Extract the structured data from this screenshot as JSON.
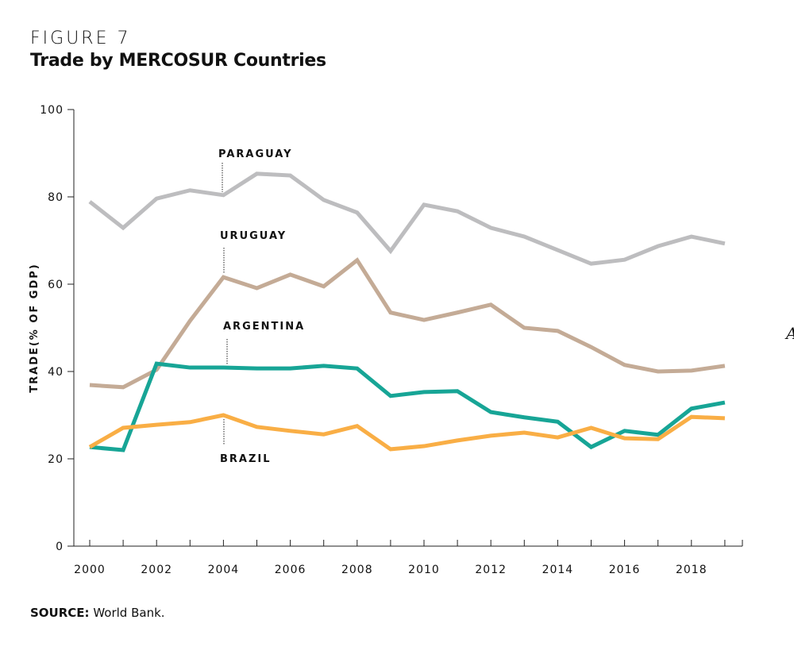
{
  "figure_label": "FIGURE 7",
  "title": "Trade by MERCOSUR Countries",
  "source_label": "SOURCE:",
  "source_text": "World Bank.",
  "stray_text": "A",
  "chart_data": {
    "type": "line",
    "title": "Trade by MERCOSUR Countries",
    "xlabel": "",
    "ylabel": "TRADE(% OF GDP)",
    "ylim": [
      0,
      100
    ],
    "xlim": [
      2000,
      2019
    ],
    "yticks": [
      "0",
      "20",
      "40",
      "60",
      "80",
      "100"
    ],
    "xticks": [
      "2000",
      "2002",
      "2004",
      "2006",
      "2008",
      "2010",
      "2012",
      "2014",
      "2016",
      "2018"
    ],
    "grid": false,
    "legend": "inline labels",
    "x": [
      2000,
      2001,
      2002,
      2003,
      2004,
      2005,
      2006,
      2007,
      2008,
      2009,
      2010,
      2011,
      2012,
      2013,
      2014,
      2015,
      2016,
      2017,
      2018,
      2019
    ],
    "series": [
      {
        "name": "PARAGUAY",
        "color": "#bdbdbf",
        "label_year": 2004,
        "values": [
          78.9,
          72.9,
          79.6,
          81.5,
          80.4,
          85.3,
          84.9,
          79.3,
          76.4,
          67.6,
          78.2,
          76.7,
          72.9,
          70.9,
          67.8,
          64.7,
          65.6,
          68.7,
          70.9,
          69.3
        ]
      },
      {
        "name": "URUGUAY",
        "color": "#c4ab96",
        "label_year": 2004,
        "values": [
          36.9,
          36.4,
          40.4,
          51.6,
          61.6,
          59.1,
          62.2,
          59.5,
          65.5,
          53.5,
          51.8,
          53.5,
          55.3,
          50.0,
          49.3,
          45.6,
          41.5,
          40.0,
          40.2,
          41.3
        ]
      },
      {
        "name": "ARGENTINA",
        "color": "#17a596",
        "label_year": 2004,
        "values": [
          22.7,
          22.0,
          41.8,
          40.9,
          40.9,
          40.7,
          40.7,
          41.3,
          40.7,
          34.4,
          35.3,
          35.5,
          30.7,
          29.5,
          28.5,
          22.7,
          26.4,
          25.5,
          31.5,
          32.9
        ]
      },
      {
        "name": "BRAZIL",
        "color": "#f9ae45",
        "label_year": 2004,
        "values": [
          22.7,
          27.1,
          27.8,
          28.4,
          30.0,
          27.3,
          26.4,
          25.6,
          27.5,
          22.2,
          22.9,
          24.2,
          25.3,
          26.0,
          24.9,
          27.1,
          24.7,
          24.5,
          29.6,
          29.3
        ]
      }
    ]
  }
}
